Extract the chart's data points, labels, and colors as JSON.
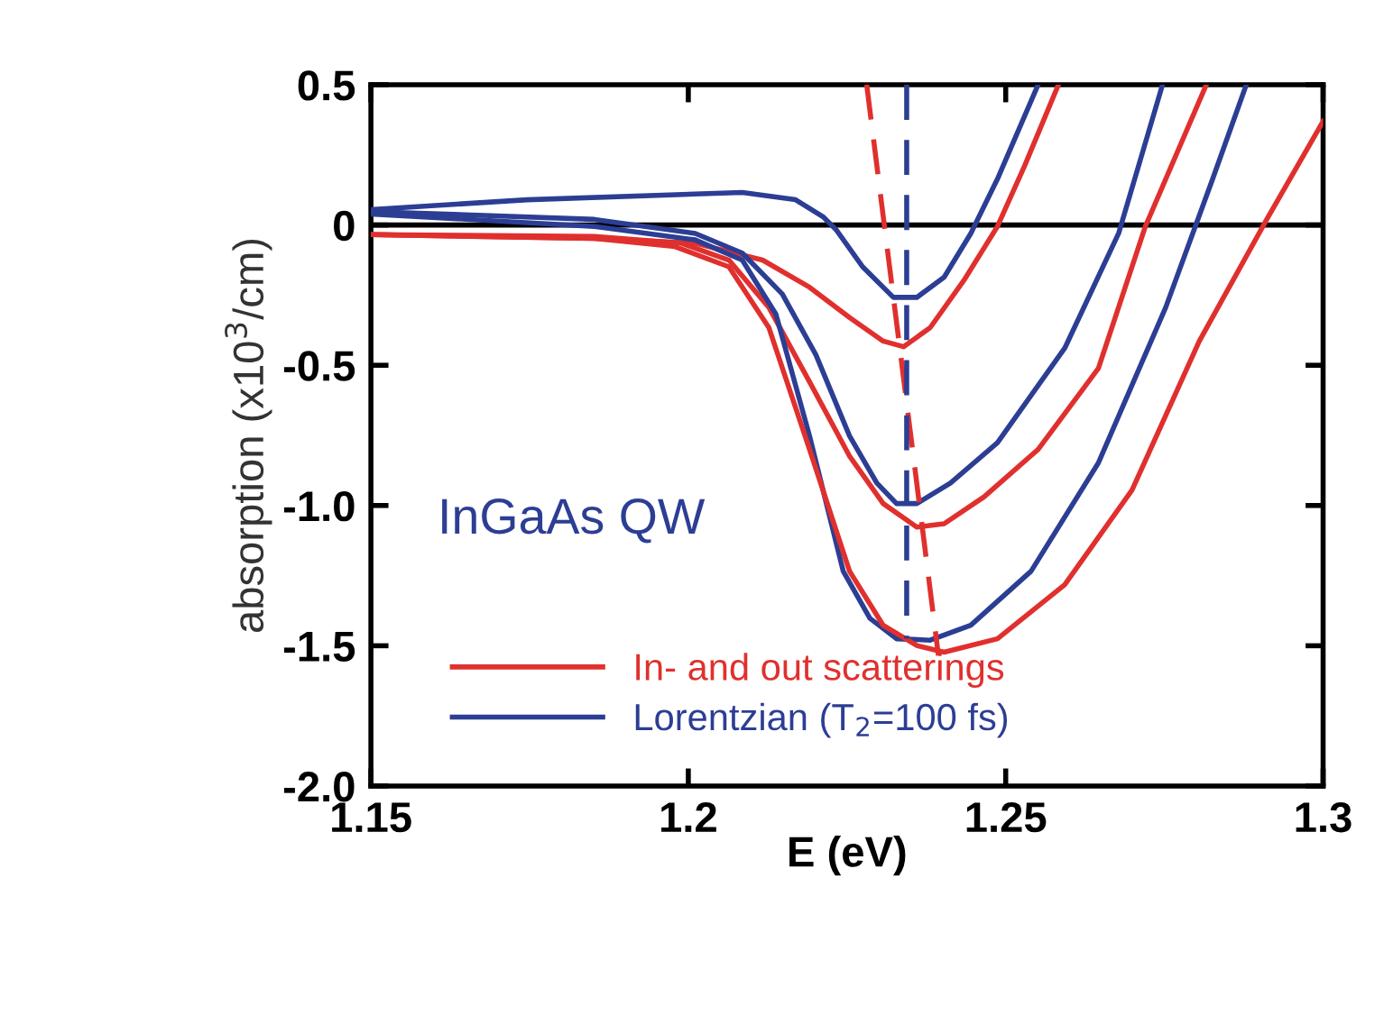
{
  "chart_data": {
    "type": "line",
    "xlabel": "E (eV)",
    "ylabel": "absorption (x10$^{3}$/cm)",
    "xlim": [
      1.15,
      1.3
    ],
    "ylim": [
      -2.0,
      0.5
    ],
    "xticks": [
      1.15,
      1.2,
      1.25,
      1.3
    ],
    "yticks": [
      0.5,
      0,
      -0.5,
      {
        "value": -1.0,
        "label": "-1.0"
      },
      {
        "value": -1.5,
        "label": "-1.5"
      },
      {
        "value": -2.0,
        "label": "-2.0"
      }
    ],
    "grid": false,
    "legend": "bottom left",
    "marker": "none",
    "line_style": "solid",
    "annotations": [
      "InGaAs QW"
    ],
    "ref_lines": [
      {
        "axis": "y",
        "value": 0,
        "color": "#000000"
      }
    ],
    "series": [
      {
        "name": "In- and out scatterings",
        "color": "#e0302e",
        "x": [
          1.15,
          1.1852,
          1.2011,
          1.2117,
          1.2191,
          1.2254,
          1.2307,
          1.2339,
          1.2381,
          1.2434,
          1.2487,
          1.253,
          1.2583
        ],
        "values": [
          -0.034,
          -0.048,
          -0.065,
          -0.125,
          -0.222,
          -0.33,
          -0.414,
          -0.434,
          -0.366,
          -0.198,
          -0.005,
          0.212,
          0.5
        ]
      },
      {
        "name": "Lorentzian (T$_{2}$=100 fs)",
        "color": "#2c3e94",
        "x": [
          1.15,
          1.1746,
          1.2085,
          1.2169,
          1.2212,
          1.2233,
          1.2275,
          1.2323,
          1.236,
          1.2403,
          1.2445,
          1.2487,
          1.2551
        ],
        "values": [
          0.055,
          0.09,
          0.116,
          0.09,
          0.03,
          -0.017,
          -0.15,
          -0.258,
          -0.258,
          -0.186,
          -0.03,
          0.164,
          0.5
        ]
      },
      {
        "color": "#2c3e94",
        "x": [
          1.15,
          1.1852,
          1.2011,
          1.2085,
          1.2148,
          1.2201,
          1.2254,
          1.2297,
          1.2328,
          1.236,
          1.2413,
          1.2487,
          1.2593,
          1.2678,
          1.2747
        ],
        "values": [
          0.048,
          0.02,
          -0.03,
          -0.1,
          -0.246,
          -0.463,
          -0.752,
          -0.92,
          -0.993,
          -0.993,
          -0.92,
          -0.776,
          -0.439,
          -0.029,
          0.5
        ]
      },
      {
        "color": "#e0302e",
        "x": [
          1.15,
          1.1852,
          1.1989,
          1.2064,
          1.2127,
          1.2191,
          1.2254,
          1.2307,
          1.236,
          1.2403,
          1.2466,
          1.2551,
          1.2646,
          1.272,
          1.2816
        ],
        "values": [
          -0.034,
          -0.041,
          -0.065,
          -0.125,
          -0.294,
          -0.559,
          -0.824,
          -0.993,
          -1.077,
          -1.065,
          -0.969,
          -0.8,
          -0.511,
          -0.005,
          0.5
        ]
      },
      {
        "color": "#2c3e94",
        "x": [
          1.15,
          1.1852,
          1.2011,
          1.2085,
          1.2138,
          1.2191,
          1.2244,
          1.2286,
          1.2328,
          1.2381,
          1.2445,
          1.254,
          1.2646,
          1.2752,
          1.2826,
          1.2879
        ],
        "values": [
          0.039,
          -0.005,
          -0.053,
          -0.125,
          -0.318,
          -0.752,
          -1.234,
          -1.402,
          -1.475,
          -1.48,
          -1.427,
          -1.234,
          -0.848,
          -0.294,
          0.164,
          0.5
        ]
      },
      {
        "color": "#e0302e",
        "x": [
          1.15,
          1.1852,
          1.1979,
          1.2064,
          1.2127,
          1.2191,
          1.2254,
          1.2307,
          1.236,
          1.2403,
          1.2487,
          1.2593,
          1.2699,
          1.2805,
          1.2911,
          1.3
        ],
        "values": [
          -0.034,
          -0.048,
          -0.077,
          -0.149,
          -0.366,
          -0.8,
          -1.234,
          -1.427,
          -1.499,
          -1.523,
          -1.475,
          -1.282,
          -0.945,
          -0.414,
          0.019,
          0.37
        ]
      },
      {
        "color": "#e0302e",
        "line_style": "dashed",
        "x": [
          1.2281,
          1.2394
        ],
        "values": [
          0.5,
          -1.535
        ]
      },
      {
        "color": "#2c3e94",
        "line_style": "dashed",
        "x": [
          1.2344,
          1.2344
        ],
        "values": [
          0.5,
          -1.475
        ]
      }
    ]
  }
}
